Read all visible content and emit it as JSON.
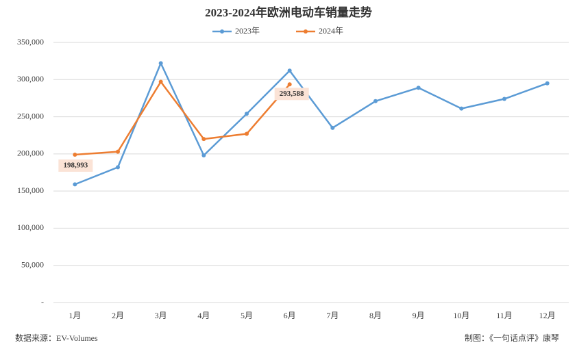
{
  "chart_data": {
    "type": "line",
    "title": "2023-2024年欧洲电动车销量走势",
    "categories": [
      "1月",
      "2月",
      "3月",
      "4月",
      "5月",
      "6月",
      "7月",
      "8月",
      "9月",
      "10月",
      "11月",
      "12月"
    ],
    "series": [
      {
        "name": "2023年",
        "color": "#5b9bd5",
        "values": [
          159000,
          182000,
          322000,
          198000,
          254000,
          312000,
          235000,
          271000,
          289000,
          261000,
          274000,
          295000
        ]
      },
      {
        "name": "2024年",
        "color": "#ed7d31",
        "values": [
          198993,
          203000,
          297000,
          220000,
          227000,
          293588,
          null,
          null,
          null,
          null,
          null,
          null
        ],
        "value_labels": [
          "198,993",
          null,
          null,
          null,
          null,
          "293,588"
        ]
      }
    ],
    "ylim": [
      0,
      350000
    ],
    "yticks": [
      {
        "value": 0,
        "label": "-"
      },
      {
        "value": 50000,
        "label": "50,000"
      },
      {
        "value": 100000,
        "label": "100,000"
      },
      {
        "value": 150000,
        "label": "150,000"
      },
      {
        "value": 200000,
        "label": "200,000"
      },
      {
        "value": 250000,
        "label": "250,000"
      },
      {
        "value": 300000,
        "label": "300,000"
      },
      {
        "value": 350000,
        "label": "350,000"
      }
    ],
    "grid": true,
    "legend": "top",
    "source": "数据来源：EV-Volumes",
    "credit": "制图：《一句话点评》康琴"
  }
}
